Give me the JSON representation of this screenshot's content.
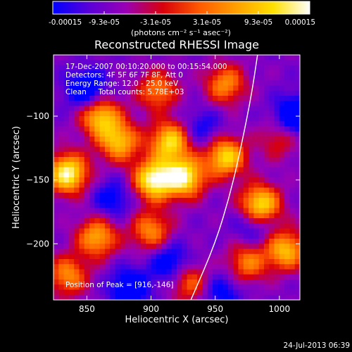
{
  "colorbar": {
    "tick_labels": [
      "-0.00015",
      "-9.3e-05",
      "-3.1e-05",
      "3.1e-05",
      "9.3e-05",
      "0.00015"
    ],
    "units": "(photons cm⁻² s⁻¹ asec⁻²)",
    "range": [
      -0.00015,
      0.00015
    ],
    "colormap": [
      "#0000ff",
      "#5a00d8",
      "#9a00b4",
      "#d8000a",
      "#ff5a00",
      "#ffa000",
      "#ffe000",
      "#ffffff"
    ]
  },
  "chart_data": {
    "type": "heatmap",
    "title": "Reconstructed RHESSI Image",
    "xlabel": "Heliocentric X (arcsec)",
    "ylabel": "Heliocentric Y (arcsec)",
    "xlim": [
      824,
      1016
    ],
    "ylim": [
      -244,
      -52
    ],
    "xticks": [
      850,
      900,
      950,
      1000
    ],
    "yticks": [
      -100,
      -150,
      -200
    ],
    "annotations": [
      "17-Dec-2007 00:10:20.000 to 00:15:54.000",
      "Detectors: 4F 5F 6F 7F 8F, Att 0",
      "Energy Range: 12.0 - 25.0 keV",
      "Clean     Total counts: 5.78E+03"
    ],
    "peak_label": "Position of Peak = [916,-146]",
    "peak_position": [
      916,
      -146
    ],
    "hot_spots": [
      {
        "x": 835,
        "y": -145,
        "level": 1.0
      },
      {
        "x": 902,
        "y": -150,
        "level": 1.0
      },
      {
        "x": 926,
        "y": -148,
        "level": 0.95
      },
      {
        "x": 915,
        "y": -120,
        "level": 0.85
      },
      {
        "x": 958,
        "y": -132,
        "level": 0.85
      },
      {
        "x": 860,
        "y": -100,
        "level": 0.8
      },
      {
        "x": 875,
        "y": -120,
        "level": 0.75
      },
      {
        "x": 985,
        "y": -170,
        "level": 0.95
      },
      {
        "x": 1005,
        "y": -205,
        "level": 0.75
      },
      {
        "x": 858,
        "y": -195,
        "level": 0.7
      },
      {
        "x": 900,
        "y": -190,
        "level": 0.6
      },
      {
        "x": 958,
        "y": -75,
        "level": 0.6
      },
      {
        "x": 905,
        "y": -80,
        "level": 0.55
      },
      {
        "x": 975,
        "y": -215,
        "level": 0.55
      },
      {
        "x": 930,
        "y": -230,
        "level": 0.5
      },
      {
        "x": 835,
        "y": -225,
        "level": 0.6
      },
      {
        "x": 1000,
        "y": -118,
        "level": 0.35
      }
    ],
    "cold_spots": [
      {
        "x": 850,
        "y": -80,
        "level": -0.55
      },
      {
        "x": 1012,
        "y": -100,
        "level": -0.6
      },
      {
        "x": 883,
        "y": -235,
        "level": -0.5
      },
      {
        "x": 915,
        "y": -215,
        "level": -0.45
      },
      {
        "x": 870,
        "y": -165,
        "level": -0.35
      },
      {
        "x": 980,
        "y": -185,
        "level": -0.35
      },
      {
        "x": 940,
        "y": -110,
        "level": -0.3
      },
      {
        "x": 955,
        "y": -238,
        "level": -0.35
      }
    ],
    "limb_curve": [
      {
        "x": 931,
        "y": -244
      },
      {
        "x": 950,
        "y": -200
      },
      {
        "x": 962,
        "y": -160
      },
      {
        "x": 971,
        "y": -120
      },
      {
        "x": 978,
        "y": -85
      },
      {
        "x": 983,
        "y": -52
      }
    ]
  },
  "footer": {
    "timestamp": "24-Jul-2013 06:39"
  }
}
